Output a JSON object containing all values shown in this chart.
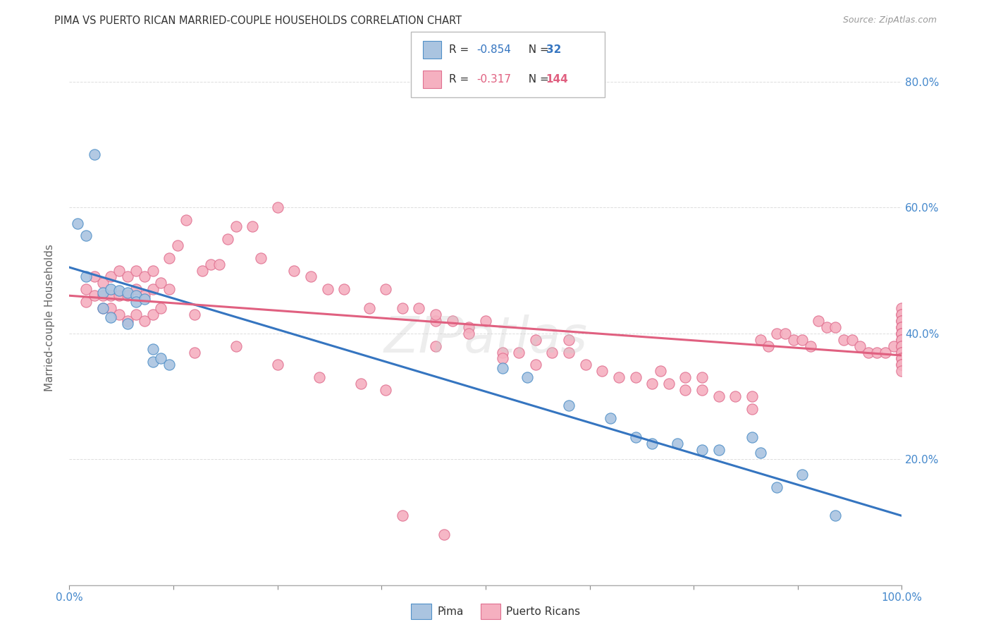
{
  "title": "PIMA VS PUERTO RICAN MARRIED-COUPLE HOUSEHOLDS CORRELATION CHART",
  "source": "Source: ZipAtlas.com",
  "ylabel": "Married-couple Households",
  "xlim": [
    0,
    1.0
  ],
  "ylim": [
    0.0,
    0.85
  ],
  "pima_color": "#aac4e0",
  "pima_edge_color": "#5090c8",
  "pima_line_color": "#3575c0",
  "pr_color": "#f5b0c0",
  "pr_edge_color": "#e07090",
  "pr_line_color": "#e06080",
  "pima_R": -0.854,
  "pima_N": 32,
  "pr_R": -0.317,
  "pr_N": 144,
  "axis_label_color": "#4488cc",
  "grid_color": "#dddddd",
  "title_color": "#333333",
  "source_color": "#999999",
  "ylabel_color": "#666666",
  "watermark_text": "ZIPatlas",
  "legend_label_blue": "R =  -0.854   N =   32",
  "legend_label_pink": "R =  -0.317   N = 144",
  "pima_intercept": 0.505,
  "pima_slope": -0.395,
  "pr_intercept": 0.46,
  "pr_slope": -0.095,
  "pima_x": [
    0.01,
    0.02,
    0.02,
    0.03,
    0.04,
    0.04,
    0.05,
    0.05,
    0.06,
    0.07,
    0.07,
    0.08,
    0.08,
    0.09,
    0.1,
    0.1,
    0.11,
    0.12,
    0.52,
    0.55,
    0.6,
    0.65,
    0.68,
    0.7,
    0.73,
    0.76,
    0.78,
    0.82,
    0.83,
    0.85,
    0.88,
    0.92
  ],
  "pima_y": [
    0.575,
    0.555,
    0.49,
    0.685,
    0.465,
    0.44,
    0.47,
    0.425,
    0.468,
    0.465,
    0.415,
    0.46,
    0.45,
    0.455,
    0.375,
    0.355,
    0.36,
    0.35,
    0.345,
    0.33,
    0.285,
    0.265,
    0.235,
    0.225,
    0.225,
    0.215,
    0.215,
    0.235,
    0.21,
    0.155,
    0.175,
    0.11
  ],
  "pr_x_left": [
    0.02,
    0.02,
    0.03,
    0.03,
    0.04,
    0.04,
    0.04,
    0.05,
    0.05,
    0.05,
    0.06,
    0.06,
    0.06,
    0.07,
    0.07,
    0.07,
    0.08,
    0.08,
    0.08,
    0.09,
    0.09,
    0.09,
    0.1,
    0.1,
    0.1,
    0.11,
    0.11,
    0.12,
    0.12,
    0.13,
    0.14,
    0.15,
    0.15,
    0.16,
    0.17,
    0.18,
    0.19,
    0.2,
    0.22,
    0.23,
    0.25,
    0.27,
    0.29,
    0.31,
    0.33,
    0.36,
    0.38,
    0.4,
    0.42,
    0.44
  ],
  "pr_y_left": [
    0.47,
    0.45,
    0.49,
    0.46,
    0.48,
    0.46,
    0.44,
    0.49,
    0.46,
    0.44,
    0.5,
    0.46,
    0.43,
    0.49,
    0.46,
    0.42,
    0.5,
    0.47,
    0.43,
    0.49,
    0.46,
    0.42,
    0.5,
    0.47,
    0.43,
    0.48,
    0.44,
    0.52,
    0.47,
    0.54,
    0.58,
    0.43,
    0.37,
    0.5,
    0.51,
    0.51,
    0.55,
    0.57,
    0.57,
    0.52,
    0.6,
    0.5,
    0.49,
    0.47,
    0.47,
    0.44,
    0.47,
    0.44,
    0.44,
    0.42
  ],
  "pr_x_mid": [
    0.44,
    0.46,
    0.48,
    0.5,
    0.52,
    0.54,
    0.56,
    0.58,
    0.6,
    0.62,
    0.64,
    0.66,
    0.68,
    0.7,
    0.72,
    0.74,
    0.76,
    0.78,
    0.8,
    0.82,
    0.44,
    0.48,
    0.52,
    0.56,
    0.6,
    0.2,
    0.25,
    0.3,
    0.35,
    0.38
  ],
  "pr_y_mid": [
    0.43,
    0.42,
    0.41,
    0.42,
    0.37,
    0.37,
    0.39,
    0.37,
    0.39,
    0.35,
    0.34,
    0.33,
    0.33,
    0.32,
    0.32,
    0.31,
    0.31,
    0.3,
    0.3,
    0.3,
    0.38,
    0.4,
    0.36,
    0.35,
    0.37,
    0.38,
    0.35,
    0.33,
    0.32,
    0.31
  ],
  "pr_x_right": [
    0.83,
    0.84,
    0.85,
    0.86,
    0.87,
    0.88,
    0.89,
    0.9,
    0.91,
    0.92,
    0.93,
    0.94,
    0.95,
    0.96,
    0.97,
    0.98,
    0.99,
    1.0,
    1.0,
    1.0,
    1.0,
    1.0,
    1.0,
    1.0,
    1.0,
    1.0,
    1.0,
    1.0,
    1.0,
    1.0,
    1.0,
    1.0,
    1.0,
    1.0,
    1.0,
    1.0,
    1.0,
    1.0,
    0.71,
    0.74,
    0.76,
    0.82,
    0.4,
    0.45
  ],
  "pr_y_right": [
    0.39,
    0.38,
    0.4,
    0.4,
    0.39,
    0.39,
    0.38,
    0.42,
    0.41,
    0.41,
    0.39,
    0.39,
    0.38,
    0.37,
    0.37,
    0.37,
    0.38,
    0.44,
    0.43,
    0.43,
    0.42,
    0.42,
    0.41,
    0.41,
    0.4,
    0.4,
    0.4,
    0.39,
    0.39,
    0.38,
    0.38,
    0.37,
    0.37,
    0.36,
    0.36,
    0.35,
    0.35,
    0.34,
    0.34,
    0.33,
    0.33,
    0.28,
    0.11,
    0.08
  ]
}
